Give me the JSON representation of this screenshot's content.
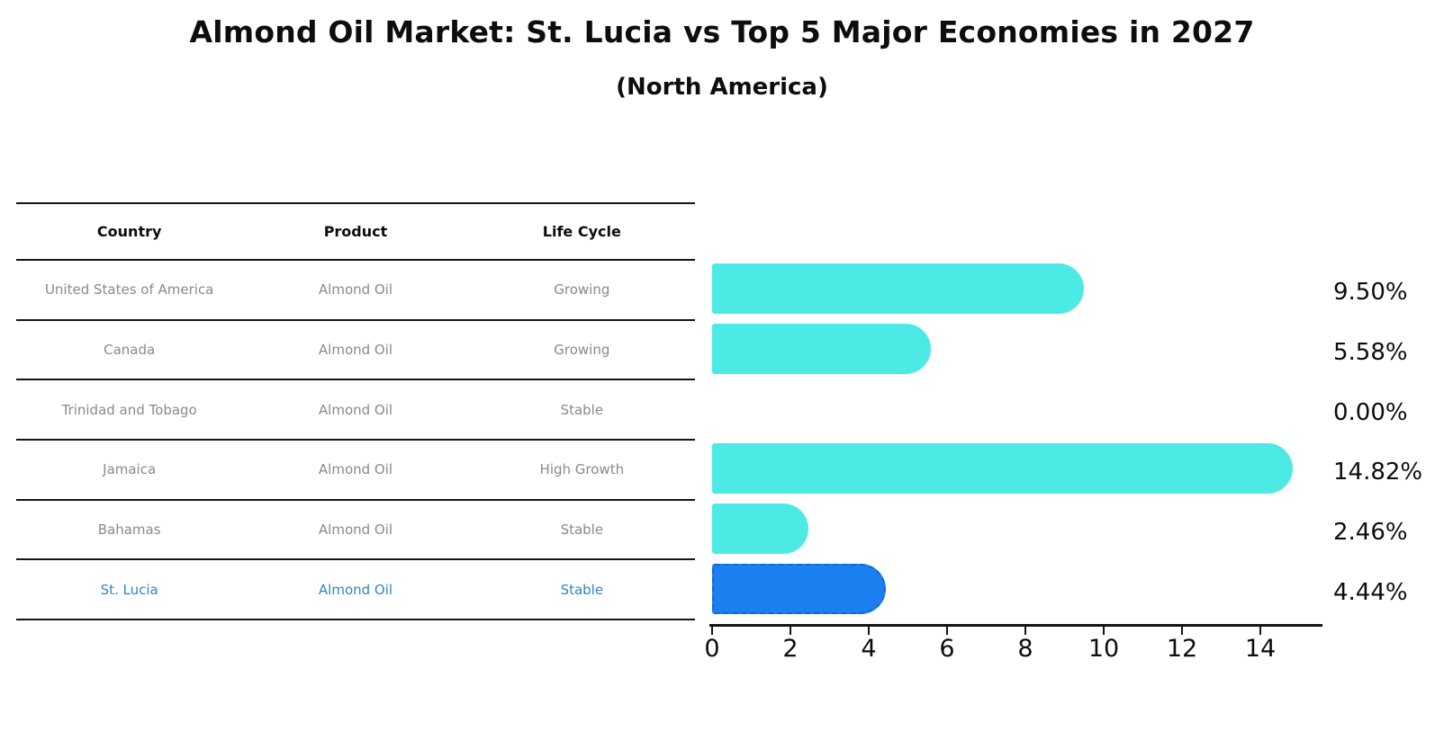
{
  "title": "Almond Oil Market: St. Lucia vs Top 5 Major Economies in 2027",
  "subtitle": "(North America)",
  "table": {
    "headers": [
      "Country",
      "Product",
      "Life Cycle"
    ],
    "rows": [
      {
        "country": "United States of America",
        "product": "Almond Oil",
        "life_cycle": "Growing",
        "highlight": false
      },
      {
        "country": "Canada",
        "product": "Almond Oil",
        "life_cycle": "Growing",
        "highlight": false
      },
      {
        "country": "Trinidad and Tobago",
        "product": "Almond Oil",
        "life_cycle": "Stable",
        "highlight": false
      },
      {
        "country": "Jamaica",
        "product": "Almond Oil",
        "life_cycle": "High Growth",
        "highlight": false
      },
      {
        "country": "Bahamas",
        "product": "Almond Oil",
        "life_cycle": "Stable",
        "highlight": false
      },
      {
        "country": "St. Lucia",
        "product": "Almond Oil",
        "life_cycle": "Stable",
        "highlight": true
      }
    ]
  },
  "chart_data": {
    "type": "bar",
    "orientation": "horizontal",
    "title": "Almond Oil Market: St. Lucia vs Top 5 Major Economies in 2027",
    "subtitle": "(North America)",
    "categories": [
      "United States of America",
      "Canada",
      "Trinidad and Tobago",
      "Jamaica",
      "Bahamas",
      "St. Lucia"
    ],
    "values": [
      9.5,
      5.58,
      0.0,
      14.82,
      2.46,
      4.44
    ],
    "value_labels": [
      "9.50%",
      "5.58%",
      "0.00%",
      "14.82%",
      "2.46%",
      "4.44%"
    ],
    "x_ticks": [
      0,
      2,
      4,
      6,
      8,
      10,
      12,
      14
    ],
    "xlim": [
      0,
      15.6
    ],
    "grid": false,
    "legend": "none",
    "highlight_index": 5
  },
  "colors": {
    "bar": "#4de9e4",
    "highlight_bar": "#1b7ff0",
    "highlight_bar_edge": "#1266d6",
    "highlight_text": "#2e86c8",
    "table_text": "#8a8a8a",
    "axis": "#151515"
  }
}
